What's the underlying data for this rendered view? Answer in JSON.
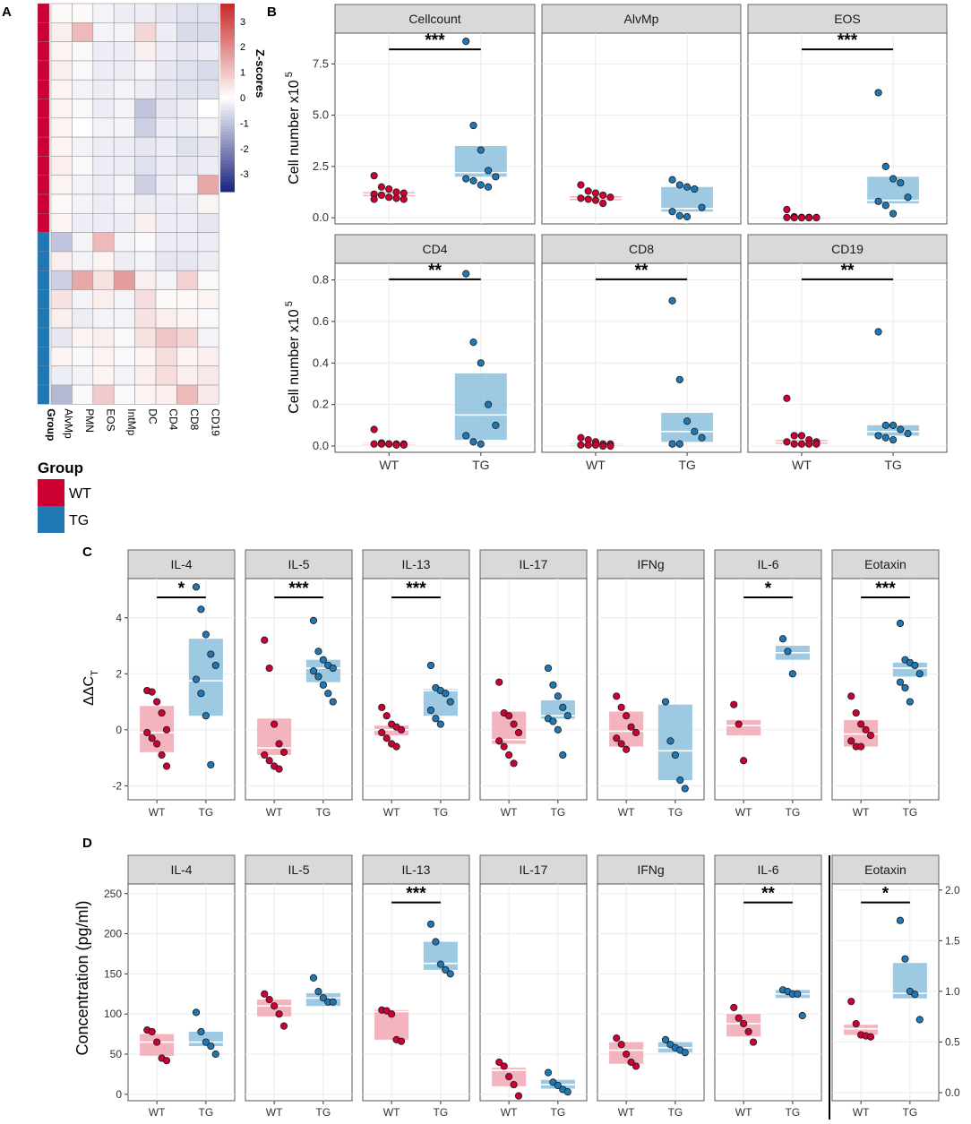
{
  "colors": {
    "wt": "#cc0033",
    "tg": "#1f77b4",
    "wt_box": "#f2a7b4",
    "tg_box": "#8cc0dd",
    "strip": "#d9d9d9",
    "strip_border": "#666666",
    "grid": "#ebebeb",
    "heat_low": "#1a237e",
    "heat_mid": "#ffffff",
    "heat_high": "#c62828"
  },
  "panel_labels": {
    "a": "A",
    "b": "B",
    "c": "C",
    "d": "D"
  },
  "chart_data": [
    {
      "id": "A",
      "type": "heatmap",
      "columns": [
        "Group",
        "AlvMp",
        "PMN",
        "EOS",
        "IntMp",
        "DC",
        "CD4",
        "CD8",
        "CD19"
      ],
      "row_groups": [
        "WT",
        "WT",
        "WT",
        "WT",
        "WT",
        "WT",
        "WT",
        "WT",
        "WT",
        "WT",
        "WT",
        "WT",
        "TG",
        "TG",
        "TG",
        "TG",
        "TG",
        "TG",
        "TG",
        "TG",
        "TG"
      ],
      "zscores": [
        [
          0.1,
          0.1,
          -0.2,
          -0.3,
          -0.3,
          -0.4,
          -0.5,
          -0.5
        ],
        [
          0.3,
          1.2,
          -0.2,
          -0.2,
          0.7,
          -0.3,
          -0.6,
          -0.6
        ],
        [
          0.2,
          -0.1,
          -0.3,
          -0.3,
          0.3,
          -0.3,
          -0.4,
          -0.3
        ],
        [
          0.3,
          -0.1,
          -0.3,
          -0.3,
          -0.2,
          -0.4,
          -0.5,
          -0.6
        ],
        [
          0.2,
          -0.2,
          -0.3,
          -0.2,
          -0.3,
          -0.4,
          -0.5,
          -0.5
        ],
        [
          0.2,
          -0.1,
          -0.3,
          -0.2,
          -1.0,
          -0.4,
          -0.3,
          0.0
        ],
        [
          0.2,
          0.0,
          -0.2,
          -0.2,
          -0.8,
          -0.3,
          -0.3,
          -0.2
        ],
        [
          0.2,
          -0.2,
          -0.3,
          -0.3,
          -0.4,
          -0.3,
          -0.5,
          -0.4
        ],
        [
          0.3,
          -0.1,
          -0.3,
          -0.3,
          -0.5,
          -0.3,
          -0.4,
          -0.3
        ],
        [
          0.2,
          -0.2,
          -0.3,
          -0.2,
          -0.8,
          -0.3,
          -0.2,
          1.5
        ],
        [
          0.1,
          -0.2,
          -0.3,
          -0.2,
          -0.3,
          -0.3,
          -0.3,
          0.2
        ],
        [
          0.2,
          -0.3,
          -0.3,
          -0.3,
          0.3,
          -0.3,
          -0.3,
          -0.4
        ],
        [
          -1.0,
          -0.2,
          1.2,
          -0.2,
          -0.1,
          -0.3,
          -0.3,
          -0.3
        ],
        [
          0.3,
          -0.2,
          0.2,
          -0.3,
          -0.2,
          -0.4,
          -0.4,
          -0.3
        ],
        [
          -0.8,
          1.5,
          0.5,
          1.7,
          0.3,
          -0.2,
          0.8,
          -0.1
        ],
        [
          0.5,
          -0.2,
          0.3,
          -0.2,
          0.6,
          0.1,
          0.1,
          0.2
        ],
        [
          0.3,
          -0.3,
          -0.2,
          -0.2,
          0.5,
          0.3,
          0.2,
          -0.1
        ],
        [
          -0.4,
          0.2,
          0.3,
          -0.1,
          0.5,
          1.0,
          0.7,
          -0.2
        ],
        [
          0.2,
          -0.1,
          0.2,
          -0.1,
          0.2,
          0.6,
          0.2,
          0.3
        ],
        [
          -0.3,
          -0.2,
          0.2,
          -0.2,
          0.3,
          0.6,
          0.3,
          0.4
        ],
        [
          -1.2,
          -0.1,
          0.9,
          -0.1,
          0.2,
          0.3,
          1.2,
          0.4
        ]
      ],
      "colorbar": {
        "title": "Z-scores",
        "range": [
          -3.7,
          3.7
        ],
        "ticks": [
          3,
          2,
          1,
          0,
          -1,
          -2,
          -3
        ]
      },
      "legend": {
        "title": "Group",
        "entries": [
          "WT",
          "TG"
        ]
      }
    },
    {
      "id": "B",
      "type": "boxplot",
      "ylabel": "Cell number x10",
      "ylabel_sup": "5",
      "x_categories": [
        "WT",
        "TG"
      ],
      "facets": [
        {
          "title": "Cellcount",
          "row": 0,
          "ylim": [
            -0.3,
            9.0
          ],
          "yticks": [
            0.0,
            2.5,
            5.0,
            7.5
          ],
          "ytick_labels": [
            "0.0",
            "2.5",
            "5.0",
            "7.5"
          ],
          "wt": {
            "q1": 1.05,
            "median": 1.15,
            "q3": 1.25,
            "points": [
              2.05,
              1.5,
              1.4,
              1.25,
              1.2,
              1.15,
              1.1,
              1.0,
              0.95,
              0.9,
              0.9
            ]
          },
          "tg": {
            "q1": 2.0,
            "median": 2.2,
            "q3": 3.5,
            "points": [
              8.6,
              4.5,
              3.3,
              2.3,
              2.0,
              1.9,
              1.8,
              1.6,
              1.5
            ]
          },
          "sig": "***"
        },
        {
          "title": "AlvMp",
          "row": 0,
          "ylim": [
            -0.3,
            9.0
          ],
          "yticks": [
            0.0,
            2.5,
            5.0,
            7.5
          ],
          "ytick_labels": [],
          "wt": {
            "q1": 0.85,
            "median": 0.95,
            "q3": 1.05,
            "points": [
              1.6,
              1.3,
              1.2,
              1.1,
              1.0,
              0.95,
              0.9,
              0.85,
              0.7
            ]
          },
          "tg": {
            "q1": 0.3,
            "median": 0.45,
            "q3": 1.5,
            "points": [
              1.85,
              1.6,
              1.5,
              1.4,
              0.5,
              0.3,
              0.1,
              0.05
            ]
          },
          "sig": ""
        },
        {
          "title": "EOS",
          "row": 0,
          "ylim": [
            -0.3,
            9.0
          ],
          "yticks": [
            0.0,
            2.5,
            5.0,
            7.5
          ],
          "ytick_labels": [],
          "wt": {
            "q1": 0.0,
            "median": 0.02,
            "q3": 0.05,
            "points": [
              0.4,
              0.05,
              0.02,
              0.02,
              0.01,
              0.01,
              0.0,
              0.0,
              0.0,
              0.0
            ]
          },
          "tg": {
            "q1": 0.7,
            "median": 0.85,
            "q3": 2.0,
            "points": [
              6.1,
              2.5,
              1.9,
              1.7,
              1.0,
              0.8,
              0.6,
              0.2
            ]
          },
          "sig": "***"
        },
        {
          "title": "CD4",
          "row": 1,
          "ylim": [
            -0.03,
            0.88
          ],
          "yticks": [
            0.0,
            0.2,
            0.4,
            0.6,
            0.8
          ],
          "ytick_labels": [
            "0.0",
            "0.2",
            "0.4",
            "0.6",
            "0.8"
          ],
          "wt": {
            "q1": 0.005,
            "median": 0.01,
            "q3": 0.015,
            "points": [
              0.08,
              0.015,
              0.01,
              0.01,
              0.01,
              0.01,
              0.01,
              0.01,
              0.005,
              0.005
            ]
          },
          "tg": {
            "q1": 0.03,
            "median": 0.15,
            "q3": 0.35,
            "points": [
              0.83,
              0.5,
              0.4,
              0.2,
              0.1,
              0.05,
              0.02,
              0.01
            ]
          },
          "sig": "**"
        },
        {
          "title": "CD8",
          "row": 1,
          "ylim": [
            -0.03,
            0.88
          ],
          "yticks": [
            0.0,
            0.2,
            0.4,
            0.6,
            0.8
          ],
          "ytick_labels": [],
          "wt": {
            "q1": 0.0,
            "median": 0.005,
            "q3": 0.01,
            "points": [
              0.04,
              0.03,
              0.02,
              0.01,
              0.01,
              0.005,
              0.005,
              0.005,
              0.0,
              0.0
            ]
          },
          "tg": {
            "q1": 0.02,
            "median": 0.07,
            "q3": 0.16,
            "points": [
              0.7,
              0.32,
              0.12,
              0.07,
              0.04,
              0.01,
              0.01
            ]
          },
          "sig": "**"
        },
        {
          "title": "CD19",
          "row": 1,
          "ylim": [
            -0.03,
            0.88
          ],
          "yticks": [
            0.0,
            0.2,
            0.4,
            0.6,
            0.8
          ],
          "ytick_labels": [],
          "wt": {
            "q1": 0.01,
            "median": 0.02,
            "q3": 0.03,
            "points": [
              0.23,
              0.05,
              0.05,
              0.03,
              0.02,
              0.02,
              0.01,
              0.01,
              0.01,
              0.01
            ]
          },
          "tg": {
            "q1": 0.05,
            "median": 0.07,
            "q3": 0.1,
            "points": [
              0.55,
              0.1,
              0.1,
              0.08,
              0.06,
              0.05,
              0.04,
              0.03
            ]
          },
          "sig": "**"
        }
      ]
    },
    {
      "id": "C",
      "type": "boxplot",
      "ylabel": "ΔΔC",
      "ylabel_sub": "T",
      "x_categories": [
        "WT",
        "TG"
      ],
      "ylim": [
        -2.5,
        5.4
      ],
      "yticks": [
        -2,
        0,
        2,
        4
      ],
      "ytick_labels": [
        "-2",
        "0",
        "2",
        "4"
      ],
      "facets": [
        {
          "title": "IL-4",
          "wt": {
            "q1": -0.8,
            "median": -0.1,
            "q3": 0.85,
            "points": [
              1.4,
              1.35,
              1.0,
              0.6,
              0.0,
              -0.1,
              -0.3,
              -0.5,
              -0.9,
              -1.3
            ]
          },
          "tg": {
            "q1": 0.5,
            "median": 1.75,
            "q3": 3.25,
            "points": [
              5.1,
              4.3,
              3.4,
              2.7,
              2.3,
              1.8,
              1.3,
              0.5,
              -1.25
            ]
          },
          "sig": "*"
        },
        {
          "title": "IL-5",
          "wt": {
            "q1": -0.9,
            "median": -0.65,
            "q3": 0.4,
            "points": [
              3.2,
              2.2,
              0.2,
              -0.5,
              -0.8,
              -0.9,
              -1.1,
              -1.3,
              -1.4
            ]
          },
          "tg": {
            "q1": 1.7,
            "median": 2.2,
            "q3": 2.5,
            "points": [
              3.9,
              2.8,
              2.5,
              2.3,
              2.2,
              2.1,
              1.9,
              1.6,
              1.3,
              1.0
            ]
          },
          "sig": "***"
        },
        {
          "title": "IL-13",
          "wt": {
            "q1": -0.2,
            "median": 0.0,
            "q3": 0.15,
            "points": [
              0.8,
              0.5,
              0.2,
              0.1,
              0.0,
              -0.1,
              -0.3,
              -0.5,
              -0.6
            ]
          },
          "tg": {
            "q1": 0.5,
            "median": 1.4,
            "q3": 1.45,
            "points": [
              2.3,
              1.5,
              1.4,
              1.3,
              1.0,
              0.7,
              0.4,
              0.2
            ]
          },
          "sig": "***"
        },
        {
          "title": "IL-17",
          "wt": {
            "q1": -0.5,
            "median": -0.35,
            "q3": 0.65,
            "points": [
              1.7,
              0.6,
              0.5,
              0.2,
              -0.1,
              -0.4,
              -0.6,
              -0.9,
              -1.2
            ]
          },
          "tg": {
            "q1": 0.4,
            "median": 0.5,
            "q3": 1.05,
            "points": [
              2.2,
              1.6,
              1.2,
              0.8,
              0.5,
              0.4,
              0.3,
              0.0,
              -0.9
            ]
          },
          "sig": ""
        },
        {
          "title": "IFNg",
          "wt": {
            "q1": -0.6,
            "median": -0.05,
            "q3": 0.65,
            "points": [
              1.2,
              0.8,
              0.5,
              0.1,
              -0.1,
              -0.3,
              -0.5,
              -0.7
            ]
          },
          "tg": {
            "q1": -1.8,
            "median": -0.75,
            "q3": 0.9,
            "points": [
              1.0,
              -0.4,
              -0.9,
              -1.8,
              -2.1
            ]
          },
          "sig": ""
        },
        {
          "title": "IL-6",
          "wt": {
            "q1": -0.2,
            "median": 0.15,
            "q3": 0.35,
            "points": [
              0.9,
              0.2,
              -1.1
            ]
          },
          "tg": {
            "q1": 2.5,
            "median": 2.75,
            "q3": 3.0,
            "points": [
              3.25,
              2.8,
              2.0
            ]
          },
          "sig": "*"
        },
        {
          "title": "Eotaxin",
          "wt": {
            "q1": -0.6,
            "median": -0.15,
            "q3": 0.35,
            "points": [
              1.2,
              0.6,
              0.2,
              0.0,
              -0.2,
              -0.4,
              -0.6,
              -0.6
            ]
          },
          "tg": {
            "q1": 1.9,
            "median": 2.2,
            "q3": 2.4,
            "points": [
              3.8,
              2.5,
              2.4,
              2.3,
              2.0,
              1.7,
              1.5,
              1.0
            ]
          },
          "sig": "***"
        }
      ]
    },
    {
      "id": "D",
      "type": "boxplot",
      "ylabel": "Concentration (pg/ml)",
      "x_categories": [
        "WT",
        "TG"
      ],
      "ylim": [
        -8,
        262
      ],
      "yticks": [
        0,
        50,
        100,
        150,
        200,
        250
      ],
      "ytick_labels": [
        "0",
        "50",
        "100",
        "150",
        "200",
        "250"
      ],
      "right_axis": {
        "ylim": [
          -0.08,
          2.06
        ],
        "yticks": [
          0.0,
          0.5,
          1.0,
          1.5,
          2.0
        ],
        "ytick_labels": [
          "0.0",
          "0.5",
          "1.0",
          "1.5",
          "2.0"
        ]
      },
      "facets": [
        {
          "title": "IL-4",
          "wt": {
            "q1": 48,
            "median": 65,
            "q3": 75,
            "points": [
              80,
              78,
              65,
              45,
              42
            ]
          },
          "tg": {
            "q1": 60,
            "median": 65,
            "q3": 78,
            "points": [
              102,
              78,
              65,
              60,
              50
            ]
          },
          "sig": ""
        },
        {
          "title": "IL-5",
          "wt": {
            "q1": 97,
            "median": 110,
            "q3": 118,
            "points": [
              125,
              118,
              110,
              100,
              85
            ]
          },
          "tg": {
            "q1": 110,
            "median": 120,
            "q3": 126,
            "points": [
              145,
              128,
              120,
              115,
              115
            ]
          },
          "sig": ""
        },
        {
          "title": "IL-13",
          "wt": {
            "q1": 68,
            "median": 103,
            "q3": 105,
            "points": [
              105,
              104,
              100,
              68,
              66
            ]
          },
          "tg": {
            "q1": 155,
            "median": 163,
            "q3": 190,
            "points": [
              212,
              190,
              162,
              155,
              150
            ]
          },
          "sig": "***"
        },
        {
          "title": "IL-17",
          "wt": {
            "q1": 10,
            "median": 30,
            "q3": 33,
            "points": [
              40,
              35,
              22,
              12,
              -2
            ]
          },
          "tg": {
            "q1": 7,
            "median": 12,
            "q3": 18,
            "points": [
              27,
              15,
              11,
              6,
              3
            ]
          },
          "sig": ""
        },
        {
          "title": "IFNg",
          "wt": {
            "q1": 38,
            "median": 55,
            "q3": 65,
            "points": [
              70,
              62,
              50,
              40,
              35
            ]
          },
          "tg": {
            "q1": 52,
            "median": 58,
            "q3": 65,
            "points": [
              68,
              62,
              58,
              55,
              52
            ]
          },
          "sig": ""
        },
        {
          "title": "IL-6",
          "wt": {
            "q1": 72,
            "median": 88,
            "q3": 100,
            "points": [
              108,
              95,
              88,
              78,
              65
            ]
          },
          "tg": {
            "q1": 120,
            "median": 125,
            "q3": 130,
            "points": [
              130,
              128,
              125,
              125,
              98
            ]
          },
          "sig": "**"
        },
        {
          "title": "Eotaxin",
          "scale": "right",
          "wt": {
            "q1": 0.57,
            "median": 0.63,
            "q3": 0.67,
            "points": [
              0.9,
              0.68,
              0.57,
              0.56,
              0.55
            ]
          },
          "tg": {
            "q1": 0.93,
            "median": 0.98,
            "q3": 1.28,
            "points": [
              1.7,
              1.32,
              1.0,
              0.97,
              0.72
            ]
          },
          "sig": "*"
        }
      ]
    }
  ]
}
